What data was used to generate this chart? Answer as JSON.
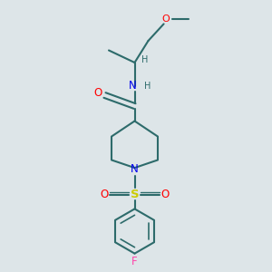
{
  "background_color": "#dde5e8",
  "bond_color": "#2d6b6b",
  "atom_colors": {
    "O": "#ff0000",
    "N": "#0000ee",
    "S": "#cccc00",
    "F": "#ff44aa",
    "H": "#2d6b6b",
    "C": "#2d6b6b"
  },
  "figsize": [
    3.0,
    3.0
  ],
  "dpi": 100
}
